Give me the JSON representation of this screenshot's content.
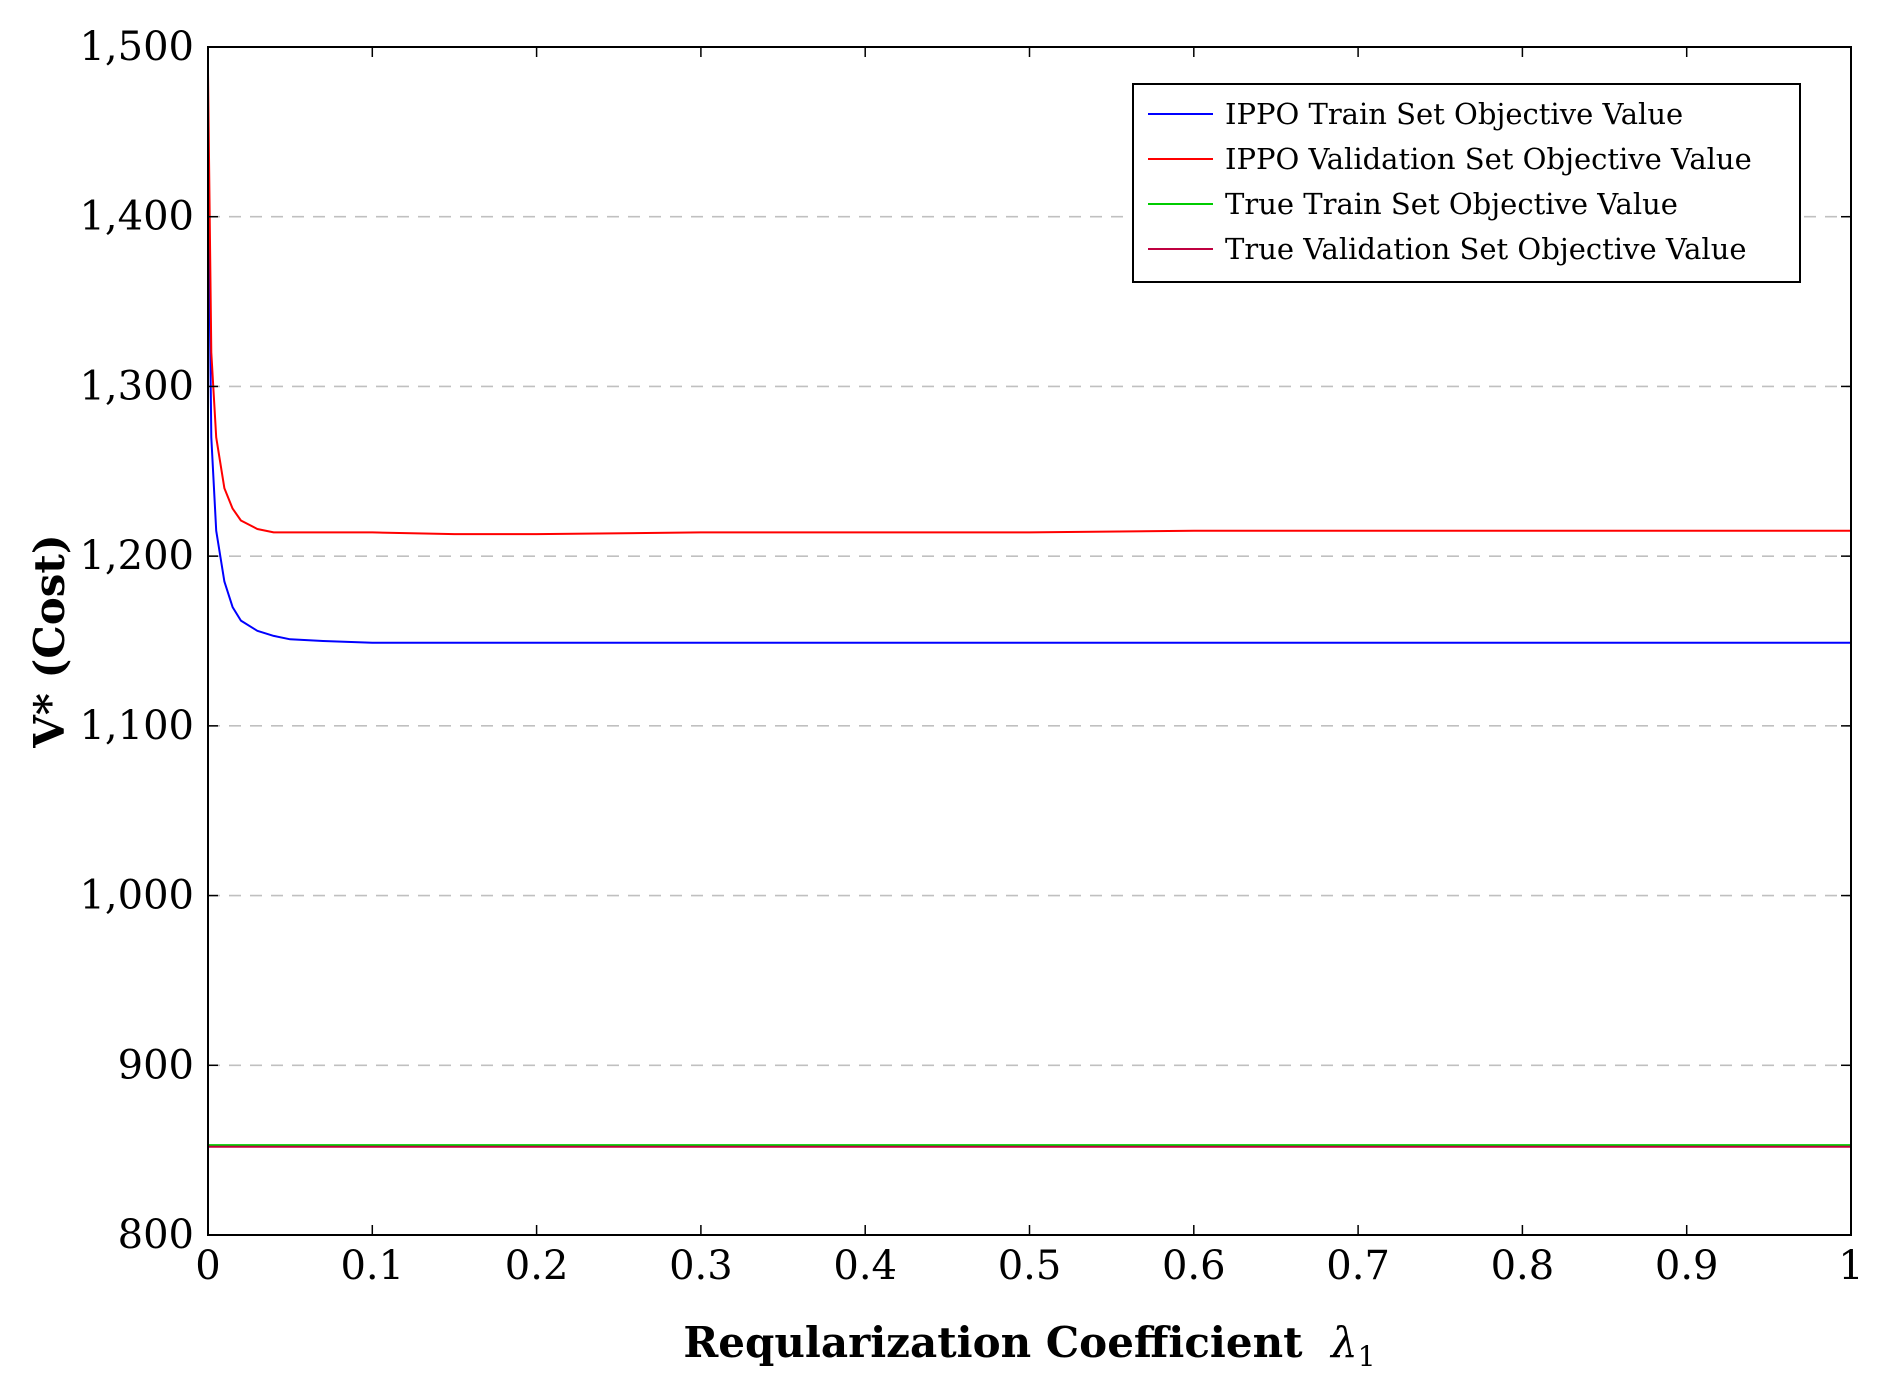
{
  "chart_data": {
    "type": "line",
    "xlabel": "Reqularization Coefficient",
    "xlabel_symbol": "λ",
    "xlabel_subscript": "1",
    "ylabel": "V* (Cost)",
    "xlim": [
      0,
      1
    ],
    "ylim": [
      800,
      1500
    ],
    "x_ticks": [
      0,
      0.1,
      0.2,
      0.3,
      0.4,
      0.5,
      0.6,
      0.7,
      0.8,
      0.9,
      1
    ],
    "x_tick_labels": [
      "0",
      "0.1",
      "0.2",
      "0.3",
      "0.4",
      "0.5",
      "0.6",
      "0.7",
      "0.8",
      "0.9",
      "1"
    ],
    "y_ticks": [
      800,
      900,
      1000,
      1100,
      1200,
      1300,
      1400,
      1500
    ],
    "y_tick_labels": [
      "800",
      "900",
      "1,000",
      "1,100",
      "1,200",
      "1,300",
      "1,400",
      "1,500"
    ],
    "grid": "horizontal dashed",
    "legend_position": "top-right",
    "series": [
      {
        "name": "IPPO Train Set Objective Value",
        "color": "#0000ff",
        "x": [
          0,
          0.002,
          0.005,
          0.01,
          0.015,
          0.02,
          0.03,
          0.04,
          0.05,
          0.07,
          0.1,
          0.2,
          0.3,
          0.4,
          0.5,
          0.6,
          0.7,
          0.8,
          0.9,
          1
        ],
        "y": [
          1440,
          1270,
          1215,
          1185,
          1170,
          1162,
          1156,
          1153,
          1151,
          1150,
          1149,
          1149,
          1149,
          1149,
          1149,
          1149,
          1149,
          1149,
          1149,
          1149
        ]
      },
      {
        "name": "IPPO Validation Set Objective Value",
        "color": "#ff0000",
        "x": [
          0,
          0.002,
          0.005,
          0.01,
          0.015,
          0.02,
          0.03,
          0.04,
          0.06,
          0.1,
          0.15,
          0.2,
          0.3,
          0.4,
          0.5,
          0.6,
          0.7,
          0.8,
          0.9,
          1
        ],
        "y": [
          1485,
          1320,
          1270,
          1240,
          1228,
          1221,
          1216,
          1214,
          1214,
          1214,
          1213,
          1213,
          1214,
          1214,
          1214,
          1215,
          1215,
          1215,
          1215,
          1215
        ]
      },
      {
        "name": "True Train Set Objective Value",
        "color": "#00cc00",
        "x": [
          0,
          1
        ],
        "y": [
          853,
          853
        ]
      },
      {
        "name": "True Validation Set Objective Value",
        "color": "#bf0040",
        "x": [
          0,
          1
        ],
        "y": [
          852,
          852
        ]
      }
    ]
  }
}
